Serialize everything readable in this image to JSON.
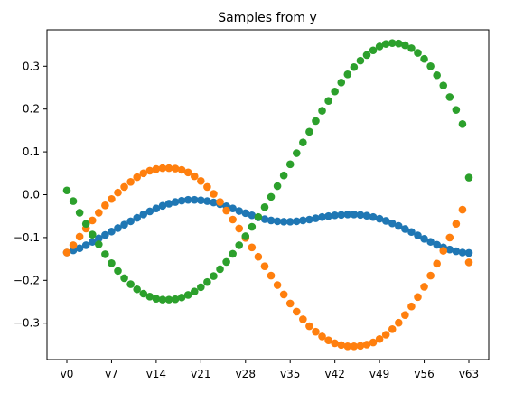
{
  "chart_data": {
    "type": "scatter",
    "title": "Samples from y",
    "xlabel": "",
    "ylabel": "",
    "x_count": 64,
    "xticks": [
      "v0",
      "v7",
      "v14",
      "v21",
      "v28",
      "v35",
      "v42",
      "v49",
      "v56",
      "v63"
    ],
    "ylim": [
      -0.385,
      0.385
    ],
    "yticks": [
      -0.3,
      -0.2,
      -0.1,
      0.0,
      0.1,
      0.2,
      0.3
    ],
    "ytick_labels": [
      "−0.3",
      "−0.2",
      "−0.1",
      "0.0",
      "0.1",
      "0.2",
      "0.3"
    ],
    "grid": false,
    "legend": "none",
    "series": [
      {
        "color": "#1f77b4",
        "values": [
          -0.135,
          -0.13,
          -0.125,
          -0.118,
          -0.11,
          -0.102,
          -0.094,
          -0.086,
          -0.078,
          -0.07,
          -0.062,
          -0.054,
          -0.046,
          -0.039,
          -0.032,
          -0.026,
          -0.021,
          -0.017,
          -0.014,
          -0.012,
          -0.012,
          -0.013,
          -0.015,
          -0.018,
          -0.022,
          -0.027,
          -0.032,
          -0.038,
          -0.043,
          -0.048,
          -0.053,
          -0.057,
          -0.06,
          -0.062,
          -0.063,
          -0.063,
          -0.062,
          -0.06,
          -0.058,
          -0.055,
          -0.052,
          -0.05,
          -0.048,
          -0.047,
          -0.046,
          -0.046,
          -0.047,
          -0.049,
          -0.052,
          -0.056,
          -0.061,
          -0.067,
          -0.073,
          -0.08,
          -0.087,
          -0.095,
          -0.103,
          -0.11,
          -0.117,
          -0.123,
          -0.128,
          -0.132,
          -0.135,
          -0.136
        ]
      },
      {
        "color": "#ff7f0e",
        "values": [
          -0.135,
          -0.118,
          -0.098,
          -0.079,
          -0.06,
          -0.042,
          -0.025,
          -0.01,
          0.005,
          0.018,
          0.03,
          0.041,
          0.05,
          0.056,
          0.06,
          0.062,
          0.062,
          0.061,
          0.058,
          0.052,
          0.043,
          0.032,
          0.018,
          0.002,
          -0.017,
          -0.037,
          -0.058,
          -0.079,
          -0.101,
          -0.123,
          -0.145,
          -0.167,
          -0.189,
          -0.211,
          -0.233,
          -0.254,
          -0.273,
          -0.291,
          -0.307,
          -0.32,
          -0.331,
          -0.34,
          -0.347,
          -0.351,
          -0.354,
          -0.354,
          -0.353,
          -0.35,
          -0.345,
          -0.337,
          -0.327,
          -0.314,
          -0.299,
          -0.281,
          -0.261,
          -0.239,
          -0.215,
          -0.189,
          -0.161,
          -0.131,
          -0.1,
          -0.068,
          -0.035,
          -0.158
        ]
      },
      {
        "color": "#2ca02c",
        "values": [
          0.01,
          -0.015,
          -0.042,
          -0.068,
          -0.093,
          -0.116,
          -0.139,
          -0.16,
          -0.178,
          -0.195,
          -0.209,
          -0.221,
          -0.231,
          -0.238,
          -0.243,
          -0.245,
          -0.245,
          -0.244,
          -0.24,
          -0.234,
          -0.226,
          -0.216,
          -0.204,
          -0.19,
          -0.174,
          -0.157,
          -0.138,
          -0.118,
          -0.097,
          -0.075,
          -0.052,
          -0.029,
          -0.005,
          0.02,
          0.045,
          0.071,
          0.097,
          0.122,
          0.147,
          0.172,
          0.196,
          0.219,
          0.241,
          0.262,
          0.281,
          0.298,
          0.313,
          0.326,
          0.337,
          0.346,
          0.352,
          0.354,
          0.353,
          0.349,
          0.342,
          0.331,
          0.317,
          0.3,
          0.279,
          0.255,
          0.228,
          0.198,
          0.165,
          0.04
        ]
      }
    ]
  }
}
